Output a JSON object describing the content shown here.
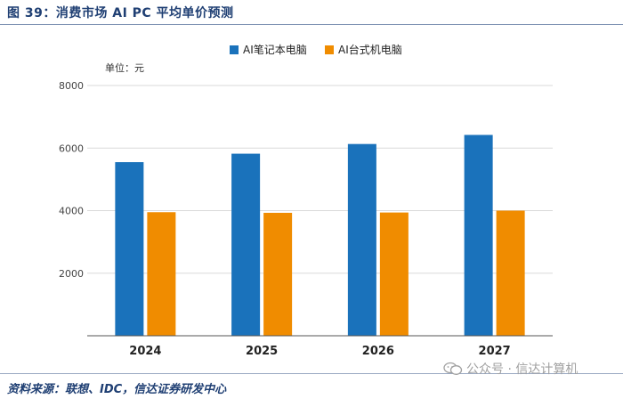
{
  "header": {
    "title": "图 39：消费市场 AI PC 平均单价预测"
  },
  "footer": {
    "source": "资料来源：联想、IDC，信达证券研发中心"
  },
  "watermark": {
    "text": "公众号 · 信达计算机",
    "icon": "wechat-icon"
  },
  "colors": {
    "series1": "#1a72bb",
    "series2": "#f08c00",
    "grid": "#d9d9d9",
    "title": "#1f3f73"
  },
  "chart_data": {
    "type": "bar",
    "title": "",
    "unit_label": "单位：元",
    "categories": [
      "2024",
      "2025",
      "2026",
      "2027"
    ],
    "series": [
      {
        "name": "AI笔记本电脑",
        "values": [
          5550,
          5820,
          6130,
          6420
        ]
      },
      {
        "name": "AI台式机电脑",
        "values": [
          3950,
          3930,
          3940,
          4000
        ]
      }
    ],
    "ylim": [
      0,
      8000
    ],
    "yticks": [
      2000,
      4000,
      6000,
      8000
    ],
    "legend_position": "top-center",
    "grid": true,
    "xlabel": "",
    "ylabel": ""
  }
}
